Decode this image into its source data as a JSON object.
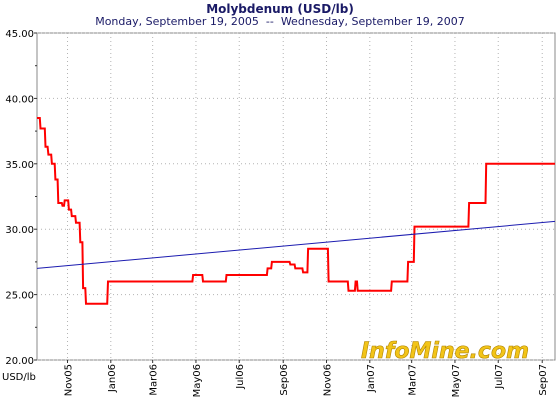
{
  "chart_data": {
    "type": "line",
    "title": "Molybdenum (USD/lb)",
    "subtitle": "Monday, September 19, 2005  --  Wednesday, September 19, 2007",
    "ylabel": "USD/lb",
    "ylim": [
      20,
      45
    ],
    "yticks": [
      "45.00",
      "40.00",
      "35.00",
      "30.00",
      "25.00",
      "20.00"
    ],
    "xlim": [
      "2005-09-19",
      "2007-09-19"
    ],
    "xticks": [
      {
        "label": "Nov05",
        "date": "2005-11-01"
      },
      {
        "label": "Jan06",
        "date": "2006-01-01"
      },
      {
        "label": "Mar06",
        "date": "2006-03-01"
      },
      {
        "label": "May06",
        "date": "2006-05-01"
      },
      {
        "label": "Jul06",
        "date": "2006-07-01"
      },
      {
        "label": "Sep06",
        "date": "2006-09-01"
      },
      {
        "label": "Nov06",
        "date": "2006-11-01"
      },
      {
        "label": "Jan07",
        "date": "2007-01-01"
      },
      {
        "label": "Mar07",
        "date": "2007-03-01"
      },
      {
        "label": "May07",
        "date": "2007-05-01"
      },
      {
        "label": "Jul07",
        "date": "2007-07-01"
      },
      {
        "label": "Sep07",
        "date": "2007-09-01"
      }
    ],
    "grid": true,
    "series": [
      {
        "color": "#ff0000",
        "points": [
          [
            "2005-09-19",
            38.5
          ],
          [
            "2005-09-23",
            38.5
          ],
          [
            "2005-09-24",
            37.7
          ],
          [
            "2005-09-30",
            37.7
          ],
          [
            "2005-10-01",
            36.3
          ],
          [
            "2005-10-04",
            36.3
          ],
          [
            "2005-10-05",
            35.7
          ],
          [
            "2005-10-09",
            35.7
          ],
          [
            "2005-10-10",
            35.0
          ],
          [
            "2005-10-14",
            35.0
          ],
          [
            "2005-10-15",
            33.8
          ],
          [
            "2005-10-18",
            33.8
          ],
          [
            "2005-10-19",
            32.0
          ],
          [
            "2005-10-24",
            32.0
          ],
          [
            "2005-10-25",
            31.8
          ],
          [
            "2005-10-27",
            31.8
          ],
          [
            "2005-10-28",
            32.2
          ],
          [
            "2005-11-02",
            32.2
          ],
          [
            "2005-11-03",
            31.5
          ],
          [
            "2005-11-06",
            31.5
          ],
          [
            "2005-11-07",
            31.0
          ],
          [
            "2005-11-12",
            31.0
          ],
          [
            "2005-11-13",
            30.5
          ],
          [
            "2005-11-18",
            30.5
          ],
          [
            "2005-11-19",
            29.0
          ],
          [
            "2005-11-22",
            29.0
          ],
          [
            "2005-11-23",
            25.5
          ],
          [
            "2005-11-26",
            25.5
          ],
          [
            "2005-11-27",
            24.3
          ],
          [
            "2005-12-27",
            24.3
          ],
          [
            "2005-12-28",
            26.0
          ],
          [
            "2006-04-26",
            26.0
          ],
          [
            "2006-04-27",
            26.5
          ],
          [
            "2006-05-10",
            26.5
          ],
          [
            "2006-05-11",
            26.0
          ],
          [
            "2006-06-12",
            26.0
          ],
          [
            "2006-06-13",
            26.5
          ],
          [
            "2006-08-09",
            26.5
          ],
          [
            "2006-08-10",
            27.0
          ],
          [
            "2006-08-15",
            27.0
          ],
          [
            "2006-08-16",
            27.5
          ],
          [
            "2006-09-10",
            27.5
          ],
          [
            "2006-09-11",
            27.3
          ],
          [
            "2006-09-17",
            27.3
          ],
          [
            "2006-09-18",
            27.0
          ],
          [
            "2006-09-28",
            27.0
          ],
          [
            "2006-09-29",
            26.7
          ],
          [
            "2006-10-05",
            26.7
          ],
          [
            "2006-10-06",
            28.5
          ],
          [
            "2006-11-03",
            28.5
          ],
          [
            "2006-11-04",
            26.0
          ],
          [
            "2006-12-01",
            26.0
          ],
          [
            "2006-12-02",
            25.3
          ],
          [
            "2006-12-11",
            25.3
          ],
          [
            "2006-12-12",
            26.0
          ],
          [
            "2006-12-14",
            26.0
          ],
          [
            "2006-12-15",
            25.3
          ],
          [
            "2007-01-31",
            25.3
          ],
          [
            "2007-02-01",
            26.0
          ],
          [
            "2007-02-23",
            26.0
          ],
          [
            "2007-02-24",
            27.5
          ],
          [
            "2007-03-04",
            27.5
          ],
          [
            "2007-03-05",
            30.2
          ],
          [
            "2007-05-20",
            30.2
          ],
          [
            "2007-05-21",
            32.0
          ],
          [
            "2007-06-13",
            32.0
          ],
          [
            "2007-06-14",
            35.0
          ],
          [
            "2007-09-19",
            35.0
          ]
        ]
      },
      {
        "color": "#1c1cb0",
        "points": [
          [
            "2005-09-19",
            27.0
          ],
          [
            "2007-09-19",
            30.6
          ]
        ]
      }
    ]
  },
  "watermark": {
    "text": "InfoMine.com",
    "fill": "#f2c418"
  }
}
